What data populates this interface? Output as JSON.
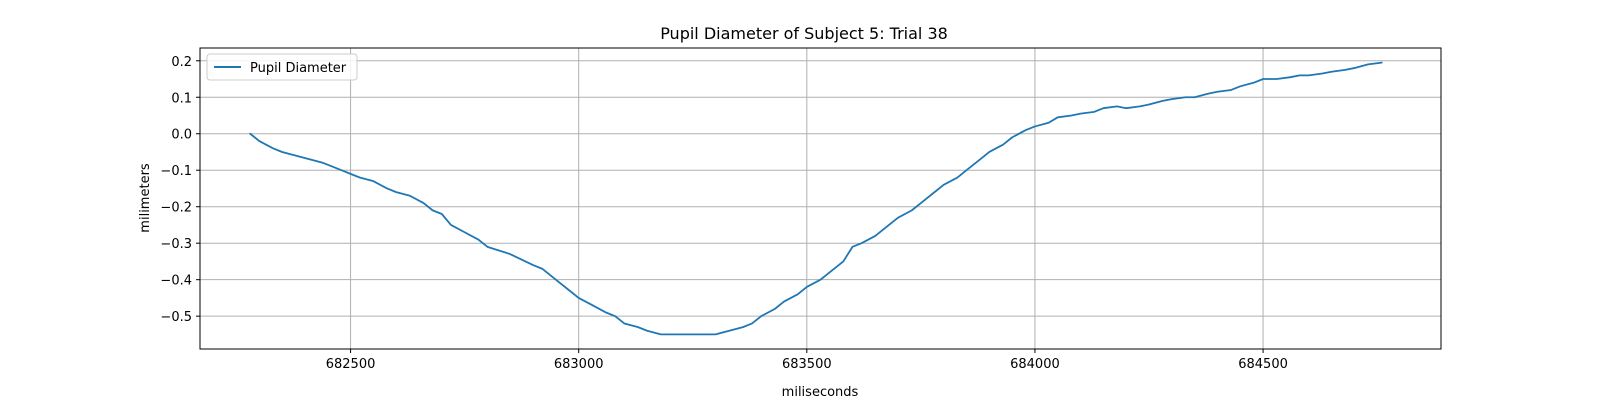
{
  "chart_data": {
    "type": "line",
    "title": "Pupil Diameter of Subject 5: Trial 38",
    "xlabel": "miliseconds",
    "ylabel": "milimeters",
    "xlim": [
      682170,
      684890
    ],
    "ylim": [
      -0.59,
      0.235
    ],
    "xticks": [
      682500,
      683000,
      683500,
      684000,
      684500
    ],
    "xtick_labels": [
      "682500",
      "683000",
      "683500",
      "684000",
      "684500"
    ],
    "yticks": [
      0.2,
      0.1,
      0.0,
      -0.1,
      -0.2,
      -0.3,
      -0.4,
      -0.5
    ],
    "ytick_labels": [
      "0.2",
      "0.1",
      "0.0",
      "−0.1",
      "−0.2",
      "−0.3",
      "−0.4",
      "−0.5"
    ],
    "grid": true,
    "legend": {
      "position": "top-left",
      "entries": [
        "Pupil Diameter"
      ]
    },
    "series": [
      {
        "name": "Pupil Diameter",
        "color": "#1f77b4",
        "x": [
          682280,
          682300,
          682330,
          682350,
          682380,
          682410,
          682440,
          682480,
          682500,
          682520,
          682550,
          682580,
          682600,
          682630,
          682660,
          682680,
          682700,
          682720,
          682750,
          682780,
          682800,
          682850,
          682900,
          682920,
          682950,
          682980,
          683000,
          683030,
          683060,
          683080,
          683100,
          683130,
          683150,
          683180,
          683200,
          683230,
          683260,
          683300,
          683330,
          683360,
          683380,
          683400,
          683430,
          683450,
          683480,
          683500,
          683530,
          683560,
          683580,
          683600,
          683620,
          683650,
          683680,
          683700,
          683730,
          683760,
          683780,
          683800,
          683830,
          683850,
          683880,
          683900,
          683930,
          683950,
          683980,
          684000,
          684030,
          684050,
          684080,
          684100,
          684130,
          684150,
          684180,
          684200,
          684230,
          684250,
          684280,
          684300,
          684330,
          684350,
          684380,
          684400,
          684430,
          684450,
          684480,
          684500,
          684530,
          684560,
          684580,
          684600,
          684630,
          684650,
          684680,
          684700,
          684730,
          684760
        ],
        "y": [
          0.0,
          -0.02,
          -0.04,
          -0.05,
          -0.06,
          -0.07,
          -0.08,
          -0.1,
          -0.11,
          -0.12,
          -0.13,
          -0.15,
          -0.16,
          -0.17,
          -0.19,
          -0.21,
          -0.22,
          -0.25,
          -0.27,
          -0.29,
          -0.31,
          -0.33,
          -0.36,
          -0.37,
          -0.4,
          -0.43,
          -0.45,
          -0.47,
          -0.49,
          -0.5,
          -0.52,
          -0.53,
          -0.54,
          -0.55,
          -0.55,
          -0.55,
          -0.55,
          -0.55,
          -0.54,
          -0.53,
          -0.52,
          -0.5,
          -0.48,
          -0.46,
          -0.44,
          -0.42,
          -0.4,
          -0.37,
          -0.35,
          -0.31,
          -0.3,
          -0.28,
          -0.25,
          -0.23,
          -0.21,
          -0.18,
          -0.16,
          -0.14,
          -0.12,
          -0.1,
          -0.07,
          -0.05,
          -0.03,
          -0.01,
          0.01,
          0.02,
          0.03,
          0.045,
          0.05,
          0.055,
          0.06,
          0.07,
          0.075,
          0.07,
          0.075,
          0.08,
          0.09,
          0.095,
          0.1,
          0.1,
          0.11,
          0.115,
          0.12,
          0.13,
          0.14,
          0.15,
          0.15,
          0.155,
          0.16,
          0.16,
          0.165,
          0.17,
          0.175,
          0.18,
          0.19,
          0.195
        ]
      }
    ]
  }
}
